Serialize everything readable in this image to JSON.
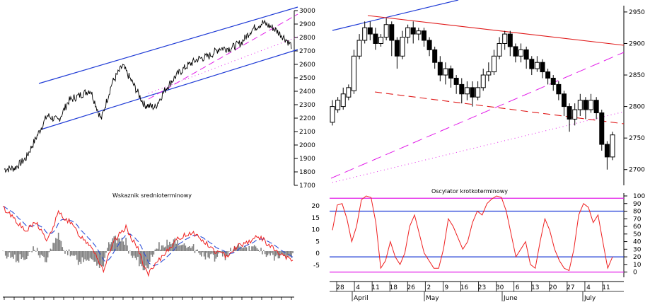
{
  "colors": {
    "price": "#000000",
    "channel": "#1f3bd6",
    "trend_pink": "#e21ce8",
    "resistance_red": "#e01a1a",
    "osc_line": "#ef2020",
    "hist": "#808080",
    "signal_blue": "#2b4fd8"
  },
  "chart_data": [
    {
      "id": "long_term_price",
      "type": "line",
      "title": "",
      "yticks": [
        "3000",
        "2900",
        "2800",
        "2700",
        "2600",
        "2500",
        "2400",
        "2300",
        "2200",
        "2100",
        "2000",
        "1900",
        "1800",
        "1700"
      ],
      "ylim": [
        1700,
        3000
      ],
      "approx_series": [
        [
          0,
          1820
        ],
        [
          3,
          1830
        ],
        [
          6,
          1900
        ],
        [
          9,
          2060
        ],
        [
          12,
          2220
        ],
        [
          15,
          2180
        ],
        [
          18,
          2330
        ],
        [
          21,
          2370
        ],
        [
          24,
          2410
        ],
        [
          27,
          2190
        ],
        [
          30,
          2460
        ],
        [
          33,
          2590
        ],
        [
          36,
          2450
        ],
        [
          39,
          2300
        ],
        [
          42,
          2280
        ],
        [
          45,
          2420
        ],
        [
          48,
          2520
        ],
        [
          51,
          2590
        ],
        [
          54,
          2640
        ],
        [
          57,
          2660
        ],
        [
          60,
          2720
        ],
        [
          63,
          2720
        ],
        [
          66,
          2760
        ],
        [
          69,
          2860
        ],
        [
          72,
          2910
        ],
        [
          75,
          2870
        ],
        [
          78,
          2800
        ],
        [
          80,
          2740
        ]
      ],
      "annotations": [
        "upward channel (blue)",
        "trend lines (magenta dashed / dotted)"
      ]
    },
    {
      "id": "medium_term_indicator",
      "type": "line",
      "title": "Wskaznik srednioterminowy",
      "yticks": [],
      "series_names": [],
      "approx_series": [
        [
          0,
          0.9
        ],
        [
          3,
          0.7
        ],
        [
          6,
          0.4
        ],
        [
          9,
          0.6
        ],
        [
          12,
          0.2
        ],
        [
          15,
          0.8
        ],
        [
          18,
          0.6
        ],
        [
          21,
          0.3
        ],
        [
          24,
          0.1
        ],
        [
          27,
          -0.4
        ],
        [
          30,
          0.2
        ],
        [
          33,
          0.5
        ],
        [
          36,
          0.1
        ],
        [
          39,
          -0.5
        ],
        [
          42,
          -0.2
        ],
        [
          45,
          0.1
        ],
        [
          48,
          0.3
        ],
        [
          51,
          0.4
        ],
        [
          54,
          0.2
        ],
        [
          57,
          0.0
        ],
        [
          60,
          -0.1
        ],
        [
          63,
          0.1
        ],
        [
          66,
          0.2
        ],
        [
          69,
          0.3
        ],
        [
          72,
          0.1
        ],
        [
          75,
          -0.1
        ],
        [
          78,
          -0.2
        ]
      ]
    },
    {
      "id": "short_term_candles",
      "type": "candlestick",
      "title": "",
      "yticks": [
        "2950",
        "2900",
        "2850",
        "2800",
        "2750",
        "2700"
      ],
      "ylim": [
        2675,
        2960
      ],
      "xticks": [
        "28",
        "4",
        "11",
        "18",
        "26",
        "2",
        "9",
        "16",
        "23",
        "30",
        "6",
        "13",
        "20",
        "27",
        "4",
        "11"
      ],
      "months": [
        "April",
        "May",
        "June",
        "July"
      ],
      "candles": [
        [
          2775,
          2800,
          2770,
          2810
        ],
        [
          2795,
          2810,
          2790,
          2815
        ],
        [
          2800,
          2820,
          2795,
          2830
        ],
        [
          2815,
          2830,
          2810,
          2835
        ],
        [
          2825,
          2880,
          2820,
          2890
        ],
        [
          2880,
          2905,
          2875,
          2915
        ],
        [
          2905,
          2925,
          2900,
          2935
        ],
        [
          2925,
          2915,
          2905,
          2935
        ],
        [
          2915,
          2900,
          2890,
          2925
        ],
        [
          2900,
          2910,
          2895,
          2915
        ],
        [
          2910,
          2930,
          2905,
          2940
        ],
        [
          2930,
          2905,
          2880,
          2935
        ],
        [
          2905,
          2880,
          2860,
          2910
        ],
        [
          2880,
          2910,
          2875,
          2920
        ],
        [
          2910,
          2925,
          2900,
          2930
        ],
        [
          2925,
          2915,
          2900,
          2935
        ],
        [
          2915,
          2920,
          2905,
          2925
        ],
        [
          2920,
          2905,
          2895,
          2925
        ],
        [
          2905,
          2890,
          2880,
          2910
        ],
        [
          2890,
          2870,
          2860,
          2895
        ],
        [
          2870,
          2850,
          2840,
          2880
        ],
        [
          2850,
          2860,
          2835,
          2870
        ],
        [
          2860,
          2845,
          2830,
          2865
        ],
        [
          2845,
          2835,
          2820,
          2850
        ],
        [
          2835,
          2820,
          2805,
          2845
        ],
        [
          2820,
          2830,
          2810,
          2840
        ],
        [
          2830,
          2815,
          2800,
          2840
        ],
        [
          2815,
          2830,
          2810,
          2840
        ],
        [
          2830,
          2850,
          2825,
          2860
        ],
        [
          2850,
          2855,
          2840,
          2870
        ],
        [
          2855,
          2880,
          2850,
          2890
        ],
        [
          2880,
          2900,
          2875,
          2910
        ],
        [
          2900,
          2915,
          2890,
          2920
        ],
        [
          2915,
          2895,
          2880,
          2920
        ],
        [
          2895,
          2880,
          2870,
          2900
        ],
        [
          2880,
          2890,
          2870,
          2900
        ],
        [
          2890,
          2875,
          2860,
          2895
        ],
        [
          2875,
          2860,
          2850,
          2880
        ],
        [
          2860,
          2870,
          2855,
          2880
        ],
        [
          2870,
          2855,
          2845,
          2875
        ],
        [
          2855,
          2845,
          2835,
          2860
        ],
        [
          2845,
          2835,
          2825,
          2850
        ],
        [
          2835,
          2820,
          2810,
          2840
        ],
        [
          2820,
          2800,
          2785,
          2825
        ],
        [
          2800,
          2780,
          2760,
          2805
        ],
        [
          2780,
          2795,
          2770,
          2805
        ],
        [
          2795,
          2810,
          2785,
          2820
        ],
        [
          2810,
          2795,
          2780,
          2815
        ],
        [
          2795,
          2810,
          2790,
          2820
        ],
        [
          2810,
          2790,
          2780,
          2815
        ],
        [
          2790,
          2740,
          2730,
          2795
        ],
        [
          2740,
          2720,
          2700,
          2745
        ],
        [
          2720,
          2755,
          2715,
          2760
        ]
      ],
      "annotations": [
        "resistance line (red solid)",
        "support line (red dashed)",
        "trend lines (magenta dashed / dotted)",
        "upper channel line (blue)"
      ]
    },
    {
      "id": "short_term_oscillator",
      "type": "line",
      "title": "Oscylator krotkoterminowy",
      "yticks": [
        "100",
        "90",
        "80",
        "70",
        "60",
        "50",
        "40",
        "30",
        "20",
        "10",
        "0"
      ],
      "left_yticks": [
        "20",
        "15",
        "10",
        "5",
        "0",
        "-5"
      ],
      "ylim": [
        -5,
        100
      ],
      "levels": [
        97,
        80,
        20,
        0
      ],
      "values": [
        55,
        88,
        90,
        70,
        40,
        60,
        95,
        100,
        98,
        65,
        5,
        15,
        40,
        20,
        10,
        25,
        60,
        75,
        50,
        25,
        15,
        5,
        5,
        30,
        70,
        60,
        45,
        30,
        40,
        65,
        80,
        75,
        90,
        96,
        100,
        98,
        80,
        50,
        20,
        30,
        40,
        10,
        5,
        40,
        70,
        55,
        30,
        15,
        5,
        2,
        30,
        75,
        90,
        85,
        65,
        75,
        40,
        5,
        20
      ]
    }
  ]
}
